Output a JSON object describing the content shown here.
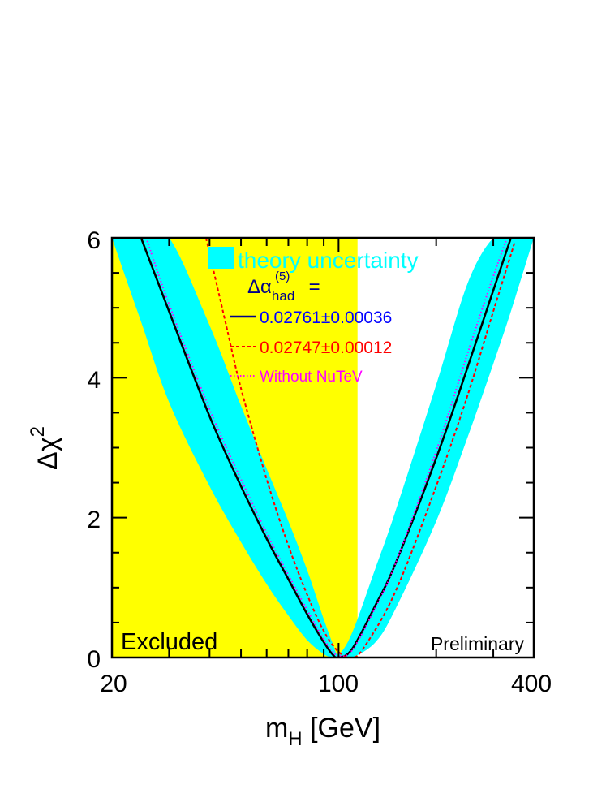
{
  "chart_data": {
    "type": "line",
    "title": "",
    "x_scale": "log",
    "xlim": [
      20,
      400
    ],
    "ylim": [
      0,
      6
    ],
    "x_tick_labels": [
      "20",
      "100",
      "400"
    ],
    "y_tick_labels": [
      "0",
      "2",
      "4",
      "6"
    ],
    "xlabel": {
      "main": "m",
      "sub": "H",
      "rest": " [GeV]"
    },
    "ylabel": {
      "main": "Δχ",
      "sup": "2"
    },
    "excluded_region": {
      "x_max": 114.4,
      "label": "Excluded",
      "color": "#ffff00"
    },
    "preliminary_label": "Preliminary",
    "legend": {
      "band_label": "theory uncertainty",
      "header": {
        "main": "Δα",
        "sub": "had",
        "sup": "(5)",
        "rest": " ="
      },
      "entries": [
        {
          "label": "0.02761±0.00036",
          "color": "#0000ff"
        },
        {
          "label": "0.02747±0.00012",
          "color": "#ff0000"
        },
        {
          "label": "Without NuTeV",
          "color": "#ff00ff"
        }
      ]
    },
    "series": [
      {
        "style": "solid",
        "color": "#000000",
        "x": [
          24.6,
          30,
          40,
          50,
          60,
          70,
          80,
          90,
          96,
          100,
          110,
          130,
          150,
          200,
          250,
          300,
          340
        ],
        "y": [
          6,
          4.95,
          3.45,
          2.45,
          1.7,
          1.12,
          0.62,
          0.22,
          0.04,
          0,
          0.12,
          0.75,
          1.35,
          2.85,
          4.15,
          5.25,
          6
        ]
      },
      {
        "style": "dashed",
        "color": "#ff0000",
        "x": [
          39,
          45,
          50,
          60,
          70,
          80,
          90,
          100,
          110,
          120,
          150,
          200,
          250,
          300,
          350
        ],
        "y": [
          6,
          4.75,
          3.85,
          2.55,
          1.6,
          0.9,
          0.38,
          0.08,
          0,
          0.15,
          0.95,
          2.45,
          3.75,
          4.95,
          5.95
        ]
      },
      {
        "style": "dotted",
        "color": "#ff00ff",
        "x": [
          25.5,
          30,
          40,
          50,
          60,
          70,
          80,
          90,
          97,
          100,
          110,
          130,
          150,
          200,
          250,
          300,
          331
        ],
        "y": [
          6,
          5.05,
          3.55,
          2.55,
          1.78,
          1.18,
          0.68,
          0.26,
          0.06,
          0.02,
          0.1,
          0.72,
          1.35,
          2.95,
          4.35,
          5.45,
          6
        ]
      }
    ],
    "band": {
      "color": "#00ffff",
      "x": [
        20,
        24.6,
        30,
        40,
        50,
        60,
        70,
        80,
        90,
        96,
        100,
        110,
        130,
        150,
        200,
        250,
        300,
        340,
        400
      ],
      "lower_y": [
        6,
        4.8,
        3.65,
        2.45,
        1.65,
        1.05,
        0.6,
        0.25,
        0.05,
        0,
        0,
        0,
        0.22,
        0.7,
        1.95,
        3.15,
        4.2,
        4.95,
        6
      ],
      "upper_y": [
        6,
        6,
        6,
        4.75,
        3.6,
        2.7,
        1.95,
        1.25,
        0.55,
        0.2,
        0.05,
        0.35,
        1.28,
        2.1,
        3.9,
        5.35,
        6,
        6,
        6
      ]
    }
  }
}
